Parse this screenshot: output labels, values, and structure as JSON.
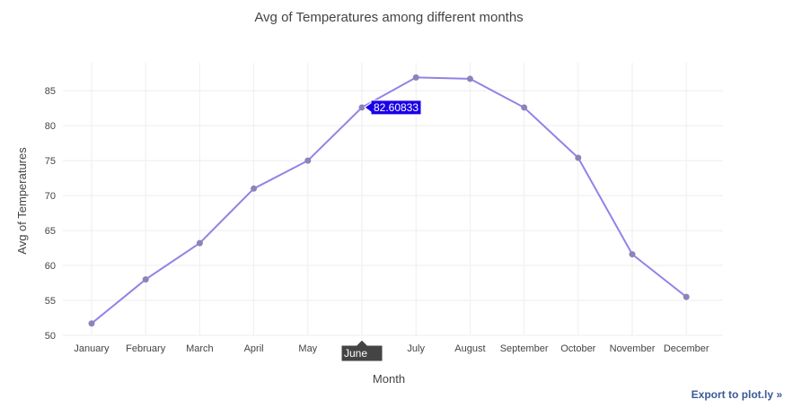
{
  "chart_data": {
    "type": "line",
    "title": "Avg of Temperatures among different months",
    "xlabel": "Month",
    "ylabel": "Avg of Temperatures",
    "categories": [
      "January",
      "February",
      "March",
      "April",
      "May",
      "June",
      "July",
      "August",
      "September",
      "October",
      "November",
      "December"
    ],
    "series": [
      {
        "values": [
          51.7,
          58.0,
          63.2,
          71.0,
          75.0,
          82.60833,
          86.9,
          86.7,
          82.6,
          75.4,
          61.6,
          55.5
        ]
      }
    ],
    "ylim": [
      50,
      89
    ],
    "yticks": [
      50,
      55,
      60,
      65,
      70,
      75,
      80,
      85
    ],
    "grid": true,
    "line_color": "#9382e6",
    "marker_color": "#8c84b8",
    "hover": {
      "index": 5,
      "x_label": "June",
      "y_label": "82.60833"
    }
  },
  "export_link": "Export to plot.ly »"
}
